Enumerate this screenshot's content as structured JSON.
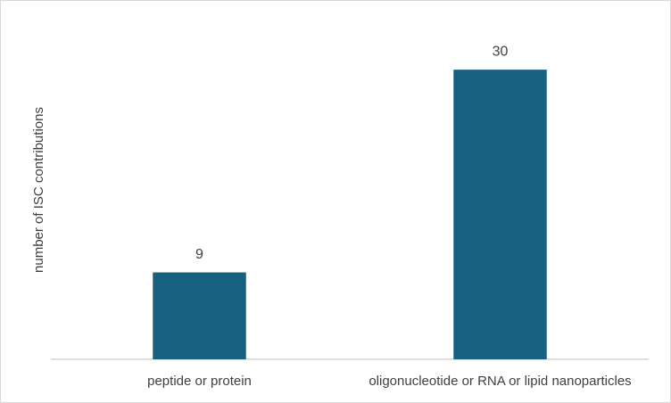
{
  "chart_data": {
    "type": "bar",
    "y_label": "number of ISC contributions",
    "categories": [
      "peptide or protein",
      "oligonucleotide or RNA or lipid nanoparticles"
    ],
    "values": [
      9,
      30
    ],
    "color": "#17607f",
    "ylim": [
      0,
      35
    ],
    "grid": false,
    "data_labels": true
  }
}
